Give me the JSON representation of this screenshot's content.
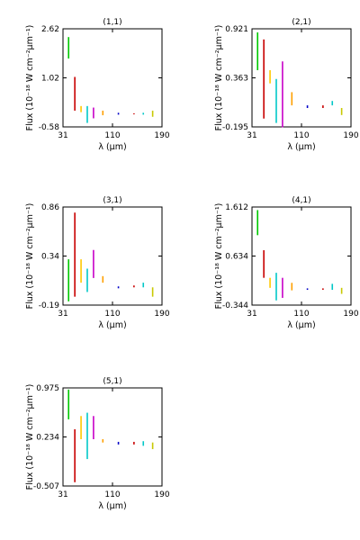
{
  "chart_data": [
    {
      "type": "scatter",
      "title": "(1,1)",
      "xlabel": "λ (μm)",
      "ylabel": "Flux (10⁻¹⁸ W cm⁻²μm⁻¹)",
      "xlim": [
        31,
        190
      ],
      "ylim": [
        -0.58,
        2.62
      ],
      "xticks": [
        "31",
        "110",
        "190"
      ],
      "yticks": [
        "2.62",
        "1.02",
        "-0.58"
      ],
      "series": [
        {
          "color": "#00c800",
          "points": [
            [
              40,
              1.65,
              2.35
            ]
          ]
        },
        {
          "color": "#c80000",
          "points": [
            [
              50,
              -0.05,
              1.05
            ]
          ]
        },
        {
          "color": "#ffc800",
          "points": [
            [
              60,
              -0.1,
              0.1
            ]
          ]
        },
        {
          "color": "#00c8c8",
          "points": [
            [
              70,
              -0.45,
              0.1
            ]
          ]
        },
        {
          "color": "#c800c8",
          "points": [
            [
              80,
              -0.3,
              0.05
            ]
          ]
        },
        {
          "color": "#ffa000",
          "points": [
            [
              95,
              -0.2,
              -0.05
            ]
          ]
        },
        {
          "color": "#0000c8",
          "points": [
            [
              120,
              -0.18,
              -0.12
            ]
          ]
        },
        {
          "color": "#c80000",
          "points": [
            [
              145,
              -0.17,
              -0.14
            ]
          ]
        },
        {
          "color": "#00c8c8",
          "points": [
            [
              160,
              -0.18,
              -0.12
            ]
          ]
        },
        {
          "color": "#c8c800",
          "points": [
            [
              175,
              -0.25,
              -0.05
            ]
          ]
        }
      ]
    },
    {
      "type": "scatter",
      "title": "(2,1)",
      "xlabel": "λ (μm)",
      "ylabel": "Flux (10⁻¹⁸ W cm⁻²μm⁻¹)",
      "xlim": [
        31,
        190
      ],
      "ylim": [
        -0.195,
        0.921
      ],
      "xticks": [
        "31",
        "110",
        "190"
      ],
      "yticks": [
        "0.921",
        "0.363",
        "-0.195"
      ],
      "series": [
        {
          "color": "#00c800",
          "points": [
            [
              40,
              0.45,
              0.88
            ]
          ]
        },
        {
          "color": "#c80000",
          "points": [
            [
              50,
              -0.1,
              0.8
            ]
          ]
        },
        {
          "color": "#ffc800",
          "points": [
            [
              60,
              0.3,
              0.45
            ]
          ]
        },
        {
          "color": "#00c8c8",
          "points": [
            [
              70,
              -0.15,
              0.35
            ]
          ]
        },
        {
          "color": "#c800c8",
          "points": [
            [
              80,
              -0.2,
              0.55
            ]
          ]
        },
        {
          "color": "#ffa000",
          "points": [
            [
              95,
              0.05,
              0.2
            ]
          ]
        },
        {
          "color": "#0000c8",
          "points": [
            [
              120,
              0.02,
              0.05
            ]
          ]
        },
        {
          "color": "#c80000",
          "points": [
            [
              145,
              0.02,
              0.05
            ]
          ]
        },
        {
          "color": "#00c8c8",
          "points": [
            [
              160,
              0.05,
              0.1
            ]
          ]
        },
        {
          "color": "#c8c800",
          "points": [
            [
              175,
              -0.06,
              0.02
            ]
          ]
        }
      ]
    },
    {
      "type": "scatter",
      "title": "(3,1)",
      "xlabel": "λ (μm)",
      "ylabel": "Flux (10⁻¹⁸ W cm⁻²μm⁻¹)",
      "xlim": [
        31,
        190
      ],
      "ylim": [
        -0.19,
        0.86
      ],
      "xticks": [
        "31",
        "110",
        "190"
      ],
      "yticks": [
        "0.86",
        "0.34",
        "-0.19"
      ],
      "series": [
        {
          "color": "#00c800",
          "points": [
            [
              40,
              -0.15,
              0.3
            ]
          ]
        },
        {
          "color": "#c80000",
          "points": [
            [
              50,
              -0.1,
              0.8
            ]
          ]
        },
        {
          "color": "#ffc800",
          "points": [
            [
              60,
              0.05,
              0.3
            ]
          ]
        },
        {
          "color": "#00c8c8",
          "points": [
            [
              70,
              -0.05,
              0.2
            ]
          ]
        },
        {
          "color": "#c800c8",
          "points": [
            [
              80,
              0.1,
              0.4
            ]
          ]
        },
        {
          "color": "#ffa000",
          "points": [
            [
              95,
              0.05,
              0.12
            ]
          ]
        },
        {
          "color": "#0000c8",
          "points": [
            [
              120,
              -0.01,
              0.01
            ]
          ]
        },
        {
          "color": "#c80000",
          "points": [
            [
              145,
              0.0,
              0.02
            ]
          ]
        },
        {
          "color": "#00c8c8",
          "points": [
            [
              160,
              0.0,
              0.05
            ]
          ]
        },
        {
          "color": "#c8c800",
          "points": [
            [
              175,
              -0.1,
              0.0
            ]
          ]
        }
      ]
    },
    {
      "type": "scatter",
      "title": "(4,1)",
      "xlabel": "λ (μm)",
      "ylabel": "Flux (10⁻¹⁸ W cm⁻²μm⁻¹)",
      "xlim": [
        31,
        190
      ],
      "ylim": [
        -0.344,
        1.612
      ],
      "xticks": [
        "31",
        "110",
        "190"
      ],
      "yticks": [
        "1.612",
        "0.634",
        "-0.344"
      ],
      "series": [
        {
          "color": "#00c800",
          "points": [
            [
              40,
              1.05,
              1.55
            ]
          ]
        },
        {
          "color": "#c80000",
          "points": [
            [
              50,
              0.2,
              0.75
            ]
          ]
        },
        {
          "color": "#ffc800",
          "points": [
            [
              60,
              0.0,
              0.2
            ]
          ]
        },
        {
          "color": "#00c8c8",
          "points": [
            [
              70,
              -0.25,
              0.3
            ]
          ]
        },
        {
          "color": "#c800c8",
          "points": [
            [
              80,
              -0.2,
              0.2
            ]
          ]
        },
        {
          "color": "#ffa000",
          "points": [
            [
              95,
              -0.05,
              0.1
            ]
          ]
        },
        {
          "color": "#0000c8",
          "points": [
            [
              120,
              -0.04,
              -0.01
            ]
          ]
        },
        {
          "color": "#c80000",
          "points": [
            [
              145,
              -0.04,
              -0.01
            ]
          ]
        },
        {
          "color": "#00c8c8",
          "points": [
            [
              160,
              -0.04,
              0.08
            ]
          ]
        },
        {
          "color": "#c8c800",
          "points": [
            [
              175,
              -0.12,
              0.0
            ]
          ]
        }
      ]
    },
    {
      "type": "scatter",
      "title": "(5,1)",
      "xlabel": "λ (μm)",
      "ylabel": "Flux (10⁻¹⁸ W cm⁻²μm⁻¹)",
      "xlim": [
        31,
        190
      ],
      "ylim": [
        -0.507,
        0.975
      ],
      "xticks": [
        "31",
        "110",
        "190"
      ],
      "yticks": [
        "0.975",
        "0.234",
        "-0.507"
      ],
      "series": [
        {
          "color": "#00c800",
          "points": [
            [
              40,
              0.5,
              0.95
            ]
          ]
        },
        {
          "color": "#c80000",
          "points": [
            [
              50,
              -0.45,
              0.35
            ]
          ]
        },
        {
          "color": "#ffc800",
          "points": [
            [
              60,
              0.2,
              0.55
            ]
          ]
        },
        {
          "color": "#00c8c8",
          "points": [
            [
              70,
              -0.1,
              0.6
            ]
          ]
        },
        {
          "color": "#c800c8",
          "points": [
            [
              80,
              0.2,
              0.55
            ]
          ]
        },
        {
          "color": "#ffa000",
          "points": [
            [
              95,
              0.15,
              0.2
            ]
          ]
        },
        {
          "color": "#0000c8",
          "points": [
            [
              120,
              0.12,
              0.16
            ]
          ]
        },
        {
          "color": "#c80000",
          "points": [
            [
              145,
              0.12,
              0.16
            ]
          ]
        },
        {
          "color": "#00c8c8",
          "points": [
            [
              160,
              0.1,
              0.17
            ]
          ]
        },
        {
          "color": "#c8c800",
          "points": [
            [
              175,
              0.05,
              0.15
            ]
          ]
        }
      ]
    }
  ]
}
